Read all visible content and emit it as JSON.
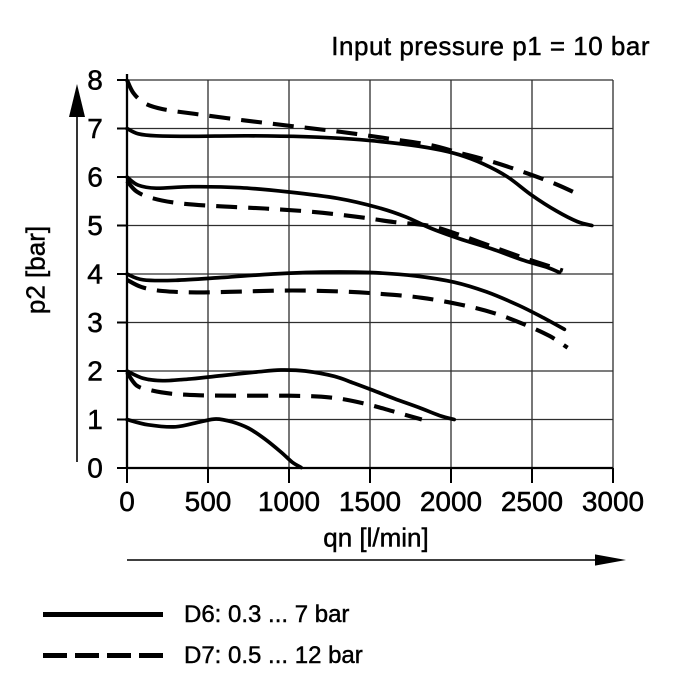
{
  "chart_data": {
    "type": "line",
    "title": "Input pressure p1 = 10 bar",
    "xlabel": "qn [l/min]",
    "ylabel": "p2 [bar]",
    "xlim": [
      0,
      3000
    ],
    "ylim": [
      0,
      8
    ],
    "xticks": [
      0,
      500,
      1000,
      1500,
      2000,
      2500,
      3000
    ],
    "yticks": [
      0,
      1,
      2,
      3,
      4,
      5,
      6,
      7,
      8
    ],
    "grid": true,
    "line_color": "#000000",
    "grid_color": "#2e2e2e",
    "legend": [
      {
        "label": "D6: 0.3 ... 7 bar",
        "style": "solid"
      },
      {
        "label": "D7: 0.5 ... 12 bar",
        "style": "dashed"
      }
    ],
    "series": [
      {
        "group": "D6",
        "style": "solid",
        "points": [
          [
            0,
            7.0
          ],
          [
            70,
            6.89
          ],
          [
            180,
            6.85
          ],
          [
            400,
            6.84
          ],
          [
            750,
            6.85
          ],
          [
            1100,
            6.83
          ],
          [
            1400,
            6.78
          ],
          [
            1700,
            6.68
          ],
          [
            1900,
            6.58
          ],
          [
            2050,
            6.46
          ],
          [
            2200,
            6.27
          ],
          [
            2350,
            6.0
          ],
          [
            2500,
            5.62
          ],
          [
            2650,
            5.3
          ],
          [
            2780,
            5.08
          ],
          [
            2870,
            5.0
          ]
        ]
      },
      {
        "group": "D7",
        "style": "dashed",
        "points": [
          [
            0,
            8.0
          ],
          [
            40,
            7.73
          ],
          [
            110,
            7.52
          ],
          [
            220,
            7.4
          ],
          [
            420,
            7.3
          ],
          [
            720,
            7.17
          ],
          [
            1020,
            7.05
          ],
          [
            1320,
            6.93
          ],
          [
            1620,
            6.79
          ],
          [
            1870,
            6.66
          ],
          [
            2050,
            6.5
          ],
          [
            2250,
            6.32
          ],
          [
            2450,
            6.1
          ],
          [
            2650,
            5.85
          ],
          [
            2800,
            5.62
          ]
        ]
      },
      {
        "group": "D6",
        "style": "solid",
        "points": [
          [
            0,
            6.0
          ],
          [
            70,
            5.83
          ],
          [
            180,
            5.77
          ],
          [
            400,
            5.8
          ],
          [
            700,
            5.78
          ],
          [
            1000,
            5.69
          ],
          [
            1300,
            5.56
          ],
          [
            1550,
            5.37
          ],
          [
            1720,
            5.18
          ],
          [
            1870,
            4.95
          ],
          [
            2050,
            4.73
          ],
          [
            2250,
            4.52
          ],
          [
            2450,
            4.28
          ],
          [
            2600,
            4.13
          ],
          [
            2670,
            4.03
          ]
        ]
      },
      {
        "group": "D7",
        "style": "dashed",
        "points": [
          [
            0,
            5.92
          ],
          [
            60,
            5.7
          ],
          [
            160,
            5.56
          ],
          [
            320,
            5.46
          ],
          [
            550,
            5.4
          ],
          [
            850,
            5.35
          ],
          [
            1150,
            5.28
          ],
          [
            1420,
            5.18
          ],
          [
            1650,
            5.07
          ],
          [
            1870,
            4.99
          ],
          [
            2050,
            4.81
          ],
          [
            2250,
            4.57
          ],
          [
            2450,
            4.33
          ],
          [
            2600,
            4.17
          ],
          [
            2690,
            4.07
          ]
        ]
      },
      {
        "group": "D6",
        "style": "solid",
        "points": [
          [
            0,
            4.0
          ],
          [
            100,
            3.88
          ],
          [
            300,
            3.87
          ],
          [
            600,
            3.93
          ],
          [
            900,
            4.0
          ],
          [
            1200,
            4.04
          ],
          [
            1500,
            4.03
          ],
          [
            1780,
            3.96
          ],
          [
            2020,
            3.83
          ],
          [
            2220,
            3.63
          ],
          [
            2420,
            3.35
          ],
          [
            2580,
            3.08
          ],
          [
            2700,
            2.86
          ]
        ]
      },
      {
        "group": "D7",
        "style": "dashed",
        "points": [
          [
            0,
            3.88
          ],
          [
            90,
            3.73
          ],
          [
            220,
            3.65
          ],
          [
            430,
            3.62
          ],
          [
            720,
            3.64
          ],
          [
            1020,
            3.66
          ],
          [
            1320,
            3.64
          ],
          [
            1570,
            3.59
          ],
          [
            1820,
            3.51
          ],
          [
            2070,
            3.36
          ],
          [
            2270,
            3.19
          ],
          [
            2460,
            2.95
          ],
          [
            2610,
            2.72
          ],
          [
            2720,
            2.48
          ]
        ]
      },
      {
        "group": "D6",
        "style": "solid",
        "points": [
          [
            0,
            2.0
          ],
          [
            100,
            1.85
          ],
          [
            220,
            1.8
          ],
          [
            400,
            1.84
          ],
          [
            600,
            1.91
          ],
          [
            800,
            1.98
          ],
          [
            950,
            2.02
          ],
          [
            1100,
            2.0
          ],
          [
            1280,
            1.89
          ],
          [
            1400,
            1.75
          ],
          [
            1520,
            1.6
          ],
          [
            1650,
            1.43
          ],
          [
            1800,
            1.25
          ],
          [
            1930,
            1.08
          ],
          [
            2020,
            1.0
          ]
        ]
      },
      {
        "group": "D7",
        "style": "dashed",
        "points": [
          [
            0,
            1.97
          ],
          [
            60,
            1.7
          ],
          [
            150,
            1.6
          ],
          [
            280,
            1.53
          ],
          [
            450,
            1.5
          ],
          [
            700,
            1.49
          ],
          [
            1000,
            1.49
          ],
          [
            1200,
            1.47
          ],
          [
            1350,
            1.41
          ],
          [
            1500,
            1.3
          ],
          [
            1650,
            1.16
          ],
          [
            1820,
            1.0
          ]
        ]
      },
      {
        "group": "D6",
        "style": "solid",
        "points": [
          [
            0,
            1.0
          ],
          [
            130,
            0.89
          ],
          [
            300,
            0.85
          ],
          [
            450,
            0.95
          ],
          [
            550,
            1.01
          ],
          [
            650,
            0.95
          ],
          [
            750,
            0.82
          ],
          [
            850,
            0.6
          ],
          [
            950,
            0.33
          ],
          [
            1020,
            0.12
          ],
          [
            1075,
            0.01
          ]
        ]
      }
    ]
  }
}
